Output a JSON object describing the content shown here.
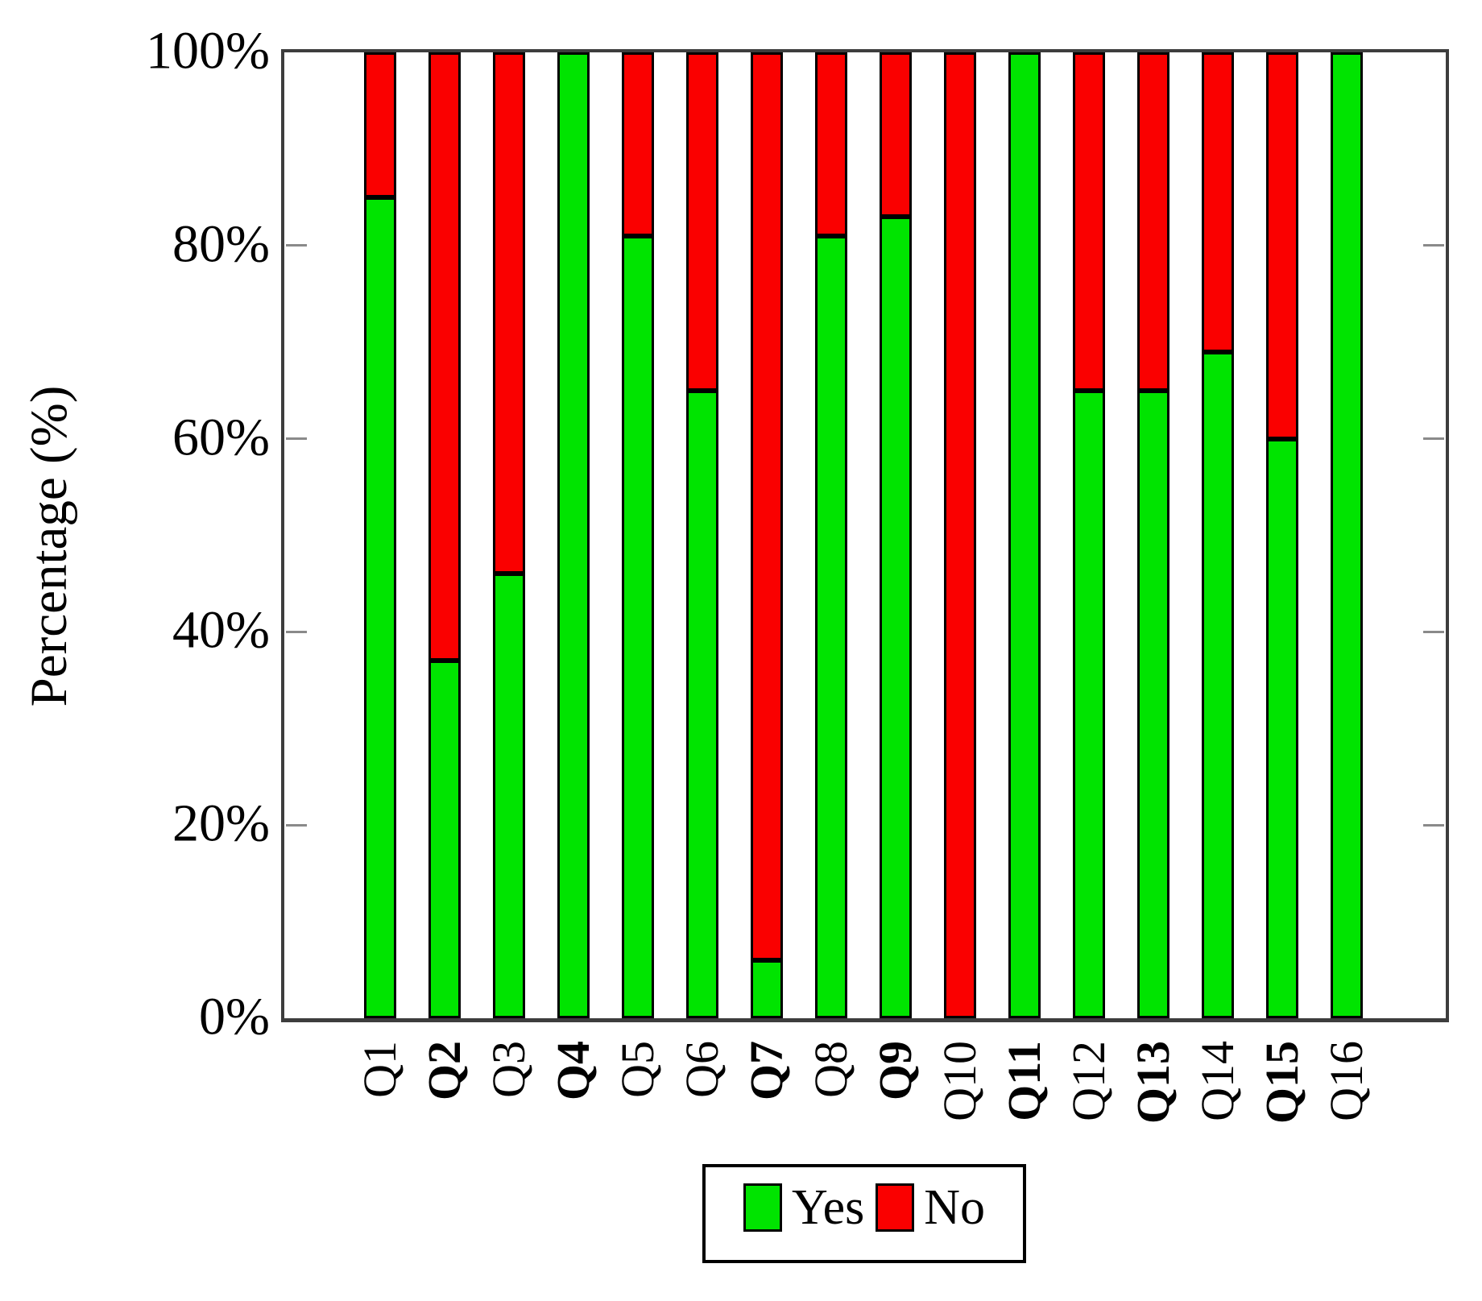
{
  "chart_data": {
    "type": "bar",
    "stacked": true,
    "ylabel": "Percentage (%)",
    "categories": [
      "Q1",
      "Q2",
      "Q3",
      "Q4",
      "Q5",
      "Q6",
      "Q7",
      "Q8",
      "Q9",
      "Q10",
      "Q11",
      "Q12",
      "Q13",
      "Q14",
      "Q15",
      "Q16"
    ],
    "bold_categories": [
      "Q2",
      "Q4",
      "Q7",
      "Q9",
      "Q11",
      "Q13",
      "Q15"
    ],
    "series": [
      {
        "name": "Yes",
        "color": "#00e400",
        "values": [
          85,
          37,
          46,
          100,
          81,
          65,
          6,
          81,
          83,
          0,
          100,
          65,
          65,
          69,
          60,
          100
        ]
      },
      {
        "name": "No",
        "color": "#fa0000",
        "values": [
          15,
          63,
          54,
          0,
          19,
          35,
          94,
          19,
          17,
          100,
          0,
          35,
          35,
          31,
          40,
          0
        ]
      }
    ],
    "ylim": [
      0,
      100
    ],
    "y_tick_values": [
      0,
      20,
      40,
      60,
      80,
      100
    ],
    "y_tick_labels": [
      "0%",
      "20%",
      "40%",
      "60%",
      "80%",
      "100%"
    ],
    "grid": false,
    "legend_position": "below-chart"
  },
  "colors": {
    "yes": "#00e400",
    "no": "#fa0000",
    "axis_frame": "#3d3d3d",
    "tick_mark": "#8a8a8a",
    "segment_border": "#000000",
    "background": "#ffffff"
  }
}
